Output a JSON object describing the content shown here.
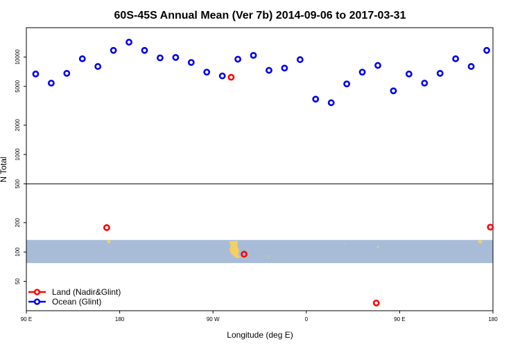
{
  "chart_data": {
    "type": "scatter",
    "title": "60S-45S Annual Mean (Ver 7b)   2014-09-06 to 2017-03-31",
    "xlabel": "Longitude (deg E)",
    "ylabel": "N Total",
    "y_scale": "log",
    "xlim": [
      90,
      540
    ],
    "ylim": [
      25,
      20000
    ],
    "x_ticks": [
      {
        "value": 90,
        "label": "90 E"
      },
      {
        "value": 180,
        "label": "180"
      },
      {
        "value": 270,
        "label": "90 W"
      },
      {
        "value": 360,
        "label": "0"
      },
      {
        "value": 450,
        "label": "90 E"
      },
      {
        "value": 540,
        "label": "180"
      }
    ],
    "y_ticks": [
      {
        "value": 50,
        "label": "50"
      },
      {
        "value": 100,
        "label": "100"
      },
      {
        "value": 200,
        "label": "200"
      },
      {
        "value": 500,
        "label": "500"
      },
      {
        "value": 1000,
        "label": "1000"
      },
      {
        "value": 2000,
        "label": "2000"
      },
      {
        "value": 5000,
        "label": "5000"
      },
      {
        "value": 10000,
        "label": "10000"
      }
    ],
    "reference_line_y": 500,
    "land_band_y": [
      77,
      133
    ],
    "colors": {
      "land": "#ff0000",
      "ocean": "#0000ee",
      "band": "#a8bcd8",
      "landmass": "#f5d060"
    },
    "legend_position": "bottom-left",
    "series": [
      {
        "name": "Land (Nadir&Glint)",
        "color": "#ff0000",
        "points": [
          [
            167.5,
            178
          ],
          [
            287.5,
            6200
          ],
          [
            300,
            95
          ],
          [
            427.5,
            30
          ],
          [
            537.5,
            180
          ]
        ]
      },
      {
        "name": "Ocean (Glint)",
        "color": "#0000ee",
        "points": [
          [
            99,
            6700
          ],
          [
            114,
            5400
          ],
          [
            129,
            6800
          ],
          [
            144,
            9600
          ],
          [
            159,
            8000
          ],
          [
            174,
            11700
          ],
          [
            189,
            14200
          ],
          [
            204,
            11700
          ],
          [
            219,
            9800
          ],
          [
            234,
            9900
          ],
          [
            249,
            8800
          ],
          [
            264,
            7000
          ],
          [
            279,
            6400
          ],
          [
            294,
            9500
          ],
          [
            309,
            10400
          ],
          [
            324,
            7300
          ],
          [
            339,
            7700
          ],
          [
            354,
            9400
          ],
          [
            369,
            3700
          ],
          [
            384,
            3400
          ],
          [
            399,
            5300
          ],
          [
            414,
            7000
          ],
          [
            429,
            8200
          ],
          [
            444,
            4500
          ],
          [
            459,
            6700
          ],
          [
            474,
            5400
          ],
          [
            489,
            6800
          ],
          [
            504,
            9600
          ],
          [
            519,
            8000
          ],
          [
            534,
            11700
          ]
        ]
      }
    ]
  }
}
